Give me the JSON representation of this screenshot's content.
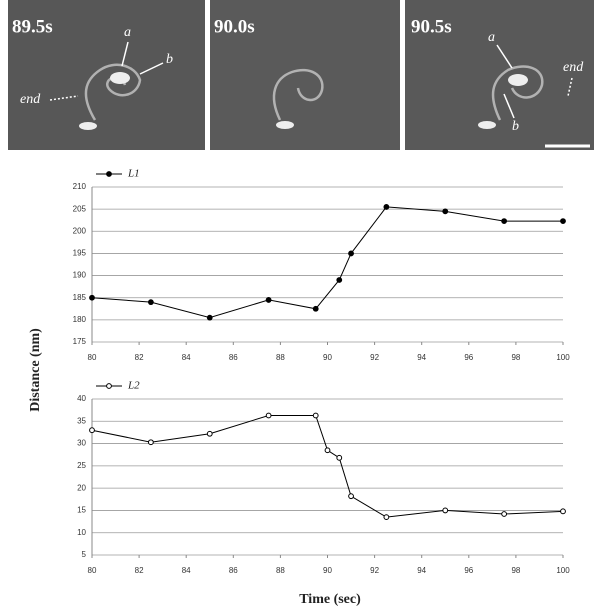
{
  "images": [
    {
      "label": "89.5s",
      "annotations": [
        "a",
        "b",
        "end"
      ]
    },
    {
      "label": "90.0s"
    },
    {
      "label": "90.5s",
      "annotations": [
        "a",
        "b",
        "end"
      ]
    }
  ],
  "chart_data": [
    {
      "type": "line",
      "ylabel": "Distance (nm)",
      "x": [
        80,
        82.5,
        85,
        87.5,
        89.5,
        90.5,
        91,
        92.5,
        95,
        97.5,
        100
      ],
      "series": [
        {
          "name": "L1",
          "color": "#000000",
          "marker": "filled",
          "values": [
            185,
            184,
            180.5,
            184.5,
            182.5,
            189,
            195,
            205.5,
            204.5,
            202.3,
            202.3
          ]
        }
      ],
      "xlim": [
        80,
        100
      ],
      "xticks": [
        80,
        82,
        84,
        86,
        88,
        90,
        92,
        94,
        96,
        98,
        100
      ],
      "ylim": [
        175,
        210
      ],
      "yticks": [
        175,
        180,
        185,
        190,
        195,
        200,
        205,
        210
      ],
      "grid": true
    },
    {
      "type": "line",
      "xlabel": "Time (sec)",
      "x": [
        80,
        82.5,
        85,
        87.5,
        89.5,
        90,
        90.5,
        91,
        92.5,
        95,
        97.5,
        100
      ],
      "series": [
        {
          "name": "L2",
          "color": "#000000",
          "marker": "open",
          "values": [
            33,
            30.3,
            32.2,
            36.3,
            36.3,
            28.5,
            26.8,
            18.2,
            13.5,
            15,
            14.2,
            14.8
          ]
        }
      ],
      "xlim": [
        80,
        100
      ],
      "xticks": [
        80,
        82,
        84,
        86,
        88,
        90,
        92,
        94,
        96,
        98,
        100
      ],
      "ylim": [
        5,
        40
      ],
      "yticks": [
        5,
        10,
        15,
        20,
        25,
        30,
        35,
        40
      ],
      "grid": true
    }
  ]
}
